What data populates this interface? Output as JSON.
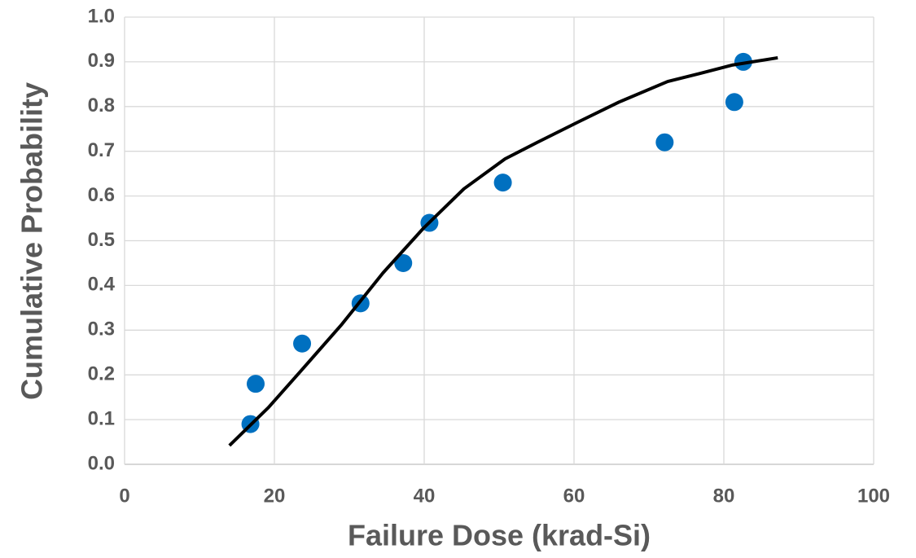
{
  "chart_data": {
    "type": "scatter",
    "xlabel": "Failure Dose (krad-Si)",
    "ylabel": "Cumulative Probability",
    "xlim": [
      0,
      100
    ],
    "xticks": [
      0,
      20,
      40,
      60,
      80,
      100
    ],
    "ylim": [
      0,
      1
    ],
    "yticks": [
      {
        "value": 0,
        "label": "0.0"
      },
      0.1,
      0.2,
      0.3,
      0.4,
      0.5,
      0.6,
      0.7,
      0.8,
      0.9,
      {
        "value": 1,
        "label": "1.0"
      }
    ],
    "grid": true,
    "series": [
      {
        "mode": "markers",
        "color": "#0070c0",
        "x": [
          16.8,
          17.5,
          23.7,
          31.5,
          37.2,
          40.7,
          50.5,
          72.1,
          81.4,
          82.6
        ],
        "values": [
          0.09,
          0.18,
          0.27,
          0.36,
          0.45,
          0.54,
          0.63,
          0.72,
          0.81,
          0.9
        ]
      },
      {
        "mode": "line",
        "color": "#000000",
        "x": [
          14.0,
          19.2,
          23.6,
          29.0,
          34.5,
          39.9,
          45.3,
          50.8,
          55.1,
          60.5,
          66.0,
          72.5,
          76.8,
          81.2,
          87.2
        ],
        "values": [
          0.042,
          0.127,
          0.21,
          0.313,
          0.428,
          0.528,
          0.616,
          0.683,
          0.72,
          0.765,
          0.81,
          0.856,
          0.874,
          0.893,
          0.909
        ]
      }
    ]
  }
}
